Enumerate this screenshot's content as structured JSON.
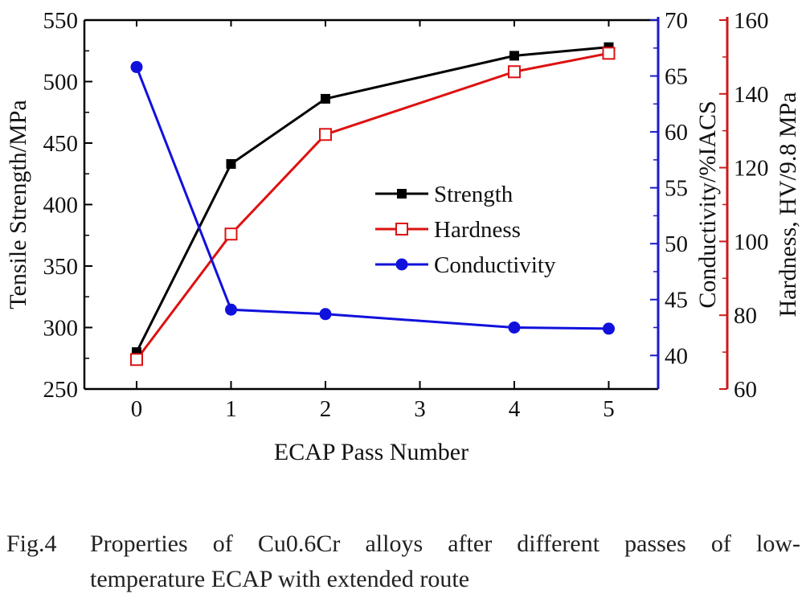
{
  "chart_data": {
    "type": "line",
    "title": "",
    "xlabel": "ECAP Pass Number",
    "categories": [
      "0",
      "1",
      "2",
      "3",
      "4",
      "5"
    ],
    "x": [
      0,
      1,
      2,
      4,
      5
    ],
    "axes": {
      "left": {
        "label": "Tensile Strength/MPa",
        "min": 250,
        "max": 550,
        "ticks": [
          250,
          300,
          350,
          400,
          450,
          500,
          550
        ],
        "color": "#000000"
      },
      "right1": {
        "label": "Conductivity/%IACS",
        "min": 37,
        "max": 70,
        "ticks": [
          40,
          45,
          50,
          55,
          60,
          65,
          70
        ],
        "color": "#1a1acc"
      },
      "right2": {
        "label": "Hardness, HV/9.8 MPa",
        "min": 60,
        "max": 160,
        "ticks": [
          60,
          80,
          100,
          120,
          140,
          160
        ],
        "color": "#cc1a1a"
      }
    },
    "series": [
      {
        "name": "Strength",
        "axis": "left",
        "color": "#000000",
        "marker": "filled-square",
        "points": [
          [
            0,
            280
          ],
          [
            1,
            433
          ],
          [
            2,
            486
          ],
          [
            4,
            521
          ],
          [
            5,
            528
          ]
        ]
      },
      {
        "name": "Hardness",
        "axis": "right2",
        "color": "#dd1111",
        "marker": "open-square",
        "points": [
          [
            0,
            68
          ],
          [
            1,
            102
          ],
          [
            2,
            129
          ],
          [
            4,
            146
          ],
          [
            5,
            151
          ]
        ]
      },
      {
        "name": "Conductivity",
        "axis": "right1",
        "color": "#1111dd",
        "marker": "filled-circle",
        "points": [
          [
            0,
            65.8
          ],
          [
            1,
            44.1
          ],
          [
            2,
            43.7
          ],
          [
            4,
            42.5
          ],
          [
            5,
            42.4
          ]
        ]
      }
    ],
    "legend": {
      "placement": "center-right",
      "entries": [
        "Strength",
        "Hardness",
        "Conductivity"
      ]
    },
    "grid": false
  },
  "caption": {
    "number": "Fig.4",
    "line1": "Properties of Cu0.6Cr alloys after different passes of low-",
    "line2": "temperature ECAP with extended route"
  }
}
